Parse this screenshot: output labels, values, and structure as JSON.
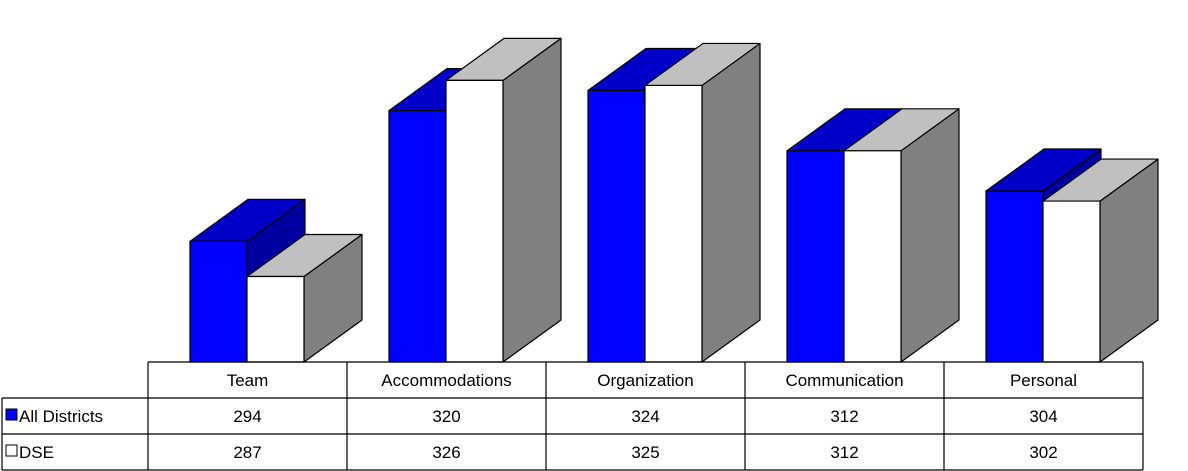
{
  "chart_data": {
    "type": "bar",
    "categories": [
      "Team",
      "Accommodations",
      "Organization",
      "Communication",
      "Personal"
    ],
    "series": [
      {
        "name": "All Districts",
        "values": [
          294,
          320,
          324,
          312,
          304
        ],
        "color": "#0000ff"
      },
      {
        "name": "DSE",
        "values": [
          287,
          326,
          325,
          312,
          302
        ],
        "color": "#ffffff"
      }
    ],
    "data_table": true,
    "three_d": true,
    "grid": false
  }
}
